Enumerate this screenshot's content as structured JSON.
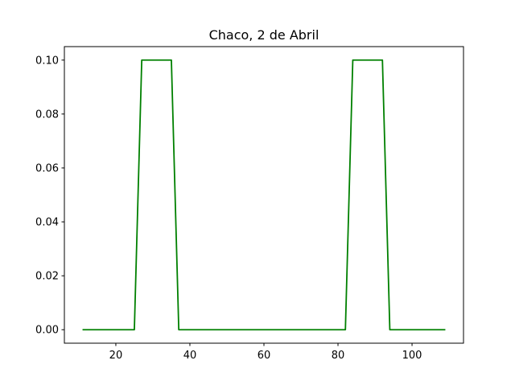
{
  "chart_data": {
    "type": "line",
    "title": "Chaco, 2 de Abril",
    "xlabel": "",
    "ylabel": "",
    "xlim": [
      6.1,
      113.9
    ],
    "ylim": [
      -0.005,
      0.105
    ],
    "xticks": [
      20,
      40,
      60,
      80,
      100
    ],
    "yticks": [
      0.0,
      0.02,
      0.04,
      0.06,
      0.08,
      0.1
    ],
    "ytick_labels": [
      "0.00",
      "0.02",
      "0.04",
      "0.06",
      "0.08",
      "0.10"
    ],
    "grid": false,
    "series": [
      {
        "color": "#008000",
        "x": [
          11,
          25,
          27,
          35,
          37,
          82,
          84,
          92,
          94,
          109
        ],
        "y": [
          0.0,
          0.0,
          0.1,
          0.1,
          0.0,
          0.0,
          0.1,
          0.1,
          0.0,
          0.0
        ]
      }
    ]
  }
}
